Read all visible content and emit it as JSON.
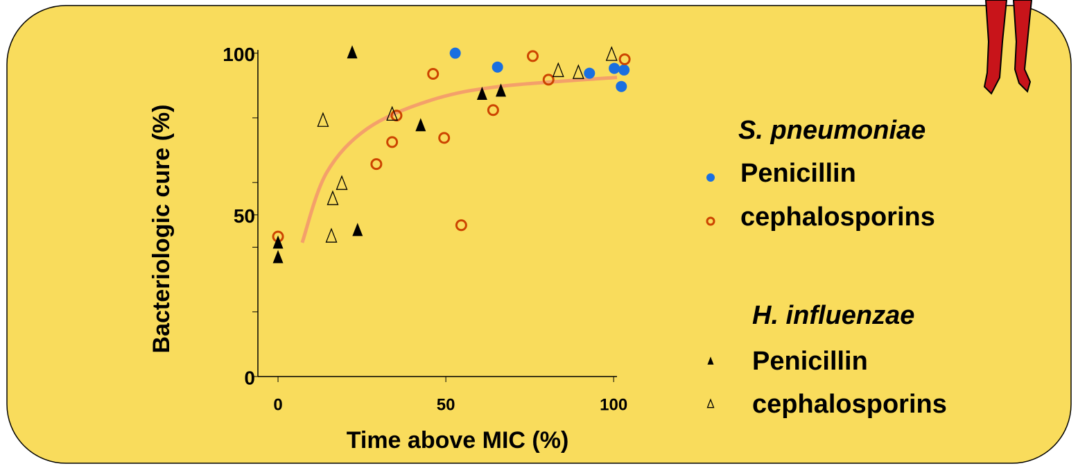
{
  "chart_data": {
    "type": "scatter",
    "xlabel": "Time above MIC (%)",
    "ylabel": "Bacteriologic cure (%)",
    "xlim": [
      -6,
      101
    ],
    "ylim": [
      0,
      101
    ],
    "xticks": [
      0,
      50,
      100
    ],
    "yticks": [
      0,
      50,
      100
    ],
    "yminorticks": [
      20,
      40,
      60,
      80
    ],
    "legend_titles": [
      {
        "text": "S. pneumoniae",
        "color": "#cc4400"
      },
      {
        "text": "H. influenzae",
        "color": "#000000"
      }
    ],
    "series": [
      {
        "name": "Penicillin",
        "marker": "circle",
        "filled": true,
        "color": "#1a6fe0",
        "x": [
          52.8,
          65.4,
          92.8,
          100.2,
          103.1,
          102.3
        ],
        "values": [
          100,
          95.7,
          93.8,
          95.3,
          94.8,
          89.7
        ]
      },
      {
        "name": "cephalosporins",
        "marker": "circle",
        "filled": false,
        "color": "#cc4400",
        "x": [
          0,
          46.2,
          35.3,
          34,
          29.3,
          49.5,
          54.6,
          64.1,
          75.9,
          80.6,
          103.3
        ],
        "values": [
          43.3,
          93.6,
          80.7,
          72.5,
          65.7,
          73.8,
          46.8,
          82.4,
          99.1,
          91.8,
          98.1
        ]
      },
      {
        "name": "Penicillin",
        "marker": "triangle",
        "filled": true,
        "color": "#000000",
        "x": [
          0,
          0,
          22.1,
          23.7,
          42.5,
          60.8,
          66.4
        ],
        "values": [
          41.6,
          37.1,
          100.4,
          45.5,
          77.9,
          87.6,
          88.6
        ]
      },
      {
        "name": "cephalosporins",
        "marker": "triangle",
        "filled": false,
        "color": "#000000",
        "x": [
          13.4,
          19,
          16.3,
          15.9,
          34,
          83.5,
          89.5,
          99.4
        ],
        "values": [
          79.4,
          59.9,
          55.2,
          43.6,
          81.3,
          94.8,
          94.2,
          99.8
        ]
      }
    ],
    "fit": {
      "color": "#f4a06a",
      "x": [
        7.2,
        14.4,
        26.8,
        45.4,
        66,
        101
      ],
      "values": [
        41.4,
        62.9,
        76.8,
        85.4,
        89.7,
        92.5
      ]
    }
  }
}
